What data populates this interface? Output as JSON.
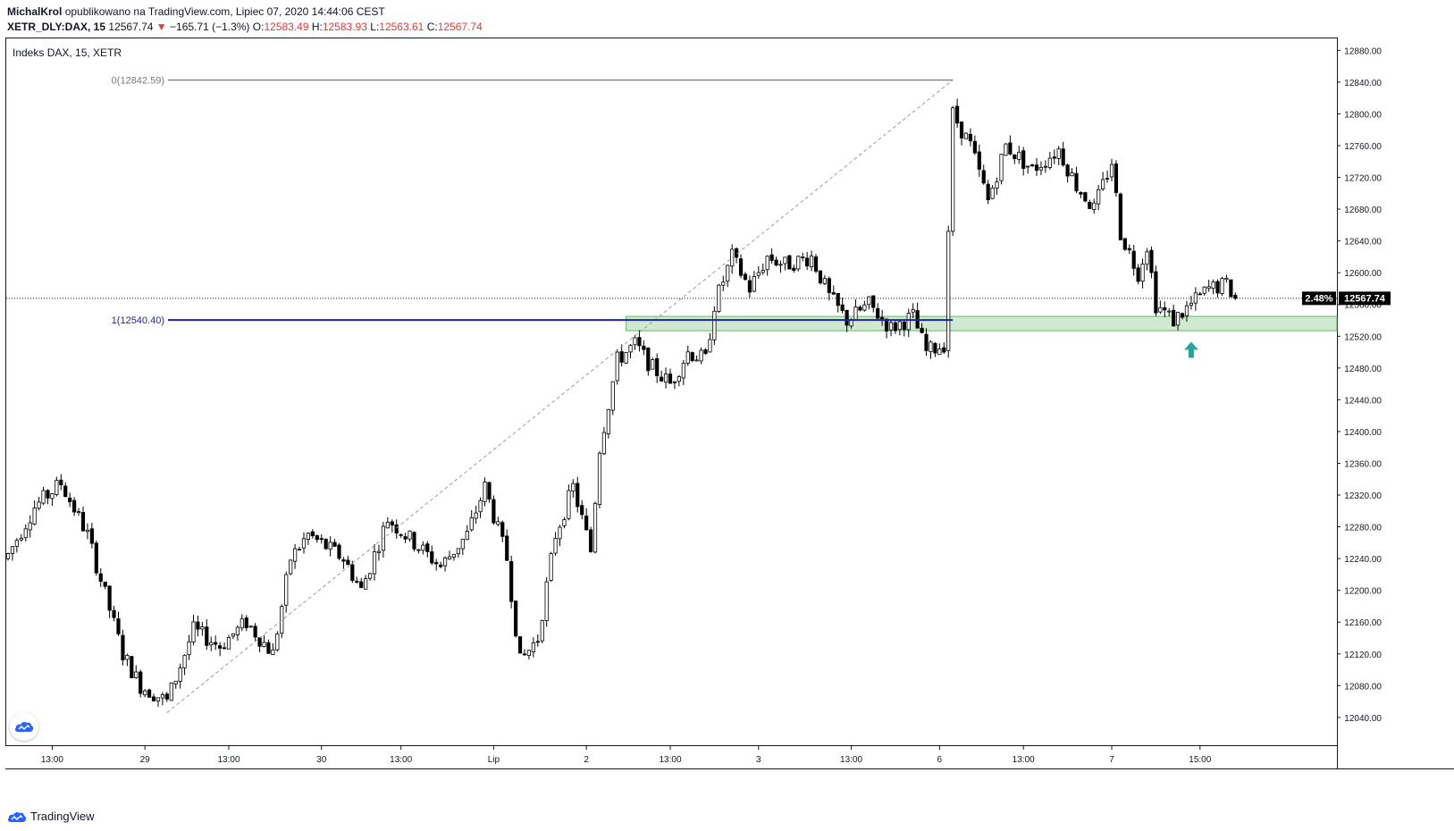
{
  "header": {
    "author": "MichalKrol",
    "published_on": "opublikowano na TradingView.com, Lipiec 07, 2020 14:44:06 CEST",
    "symbol": "XETR_DLY:DAX, 15",
    "last": "12567.74",
    "change_arrow": "▼",
    "change": "−165.71 (−1.3%)",
    "o_label": "O:",
    "o_value": "12583.49",
    "h_label": "H:",
    "h_value": "12583.93",
    "l_label": "L:",
    "l_value": "12563.61",
    "c_label": "C:",
    "c_value": "12567.74"
  },
  "legend": "Indeks DAX, 15, XETR",
  "fib": {
    "level0_label": "0(12842.59)",
    "level1_label": "1(12540.40)",
    "level0": 12842.59,
    "level1": 12540.4
  },
  "price_badge": {
    "pct": "2.48%",
    "price": "12567.74"
  },
  "footer": {
    "brand": "TradingView"
  },
  "colors": {
    "candle_up_fill": "#ffffff",
    "candle_down_fill": "#000000",
    "fib_level0_line": "#787b86",
    "fib_level1_line": "#1e22aa",
    "zone_fill": "#c8e6c9",
    "zone_border": "#4caf50",
    "arrow": "#26a69a",
    "grid": "#ffffff"
  },
  "chart_data": {
    "type": "candlestick",
    "title": "Indeks DAX, 15, XETR",
    "y_axis": {
      "ylim": [
        12005,
        12895
      ],
      "ticks": [
        12040,
        12080,
        12120,
        12160,
        12200,
        12240,
        12280,
        12320,
        12360,
        12400,
        12440,
        12480,
        12520,
        12560,
        12600,
        12640,
        12680,
        12720,
        12760,
        12800,
        12840,
        12880
      ],
      "tick_labels": [
        "12040.00",
        "12080.00",
        "12120.00",
        "12160.00",
        "12200.00",
        "12240.00",
        "12280.00",
        "12320.00",
        "12360.00",
        "12400.00",
        "12440.00",
        "12480.00",
        "12520.00",
        "12560.00",
        "12600.00",
        "12640.00",
        "12680.00",
        "12720.00",
        "12760.00",
        "12800.00",
        "12840.00",
        "12880.00"
      ]
    },
    "x_axis": {
      "bar_count": 290,
      "tick_bars": [
        10,
        31,
        50,
        71,
        89,
        110,
        131,
        150,
        170,
        191,
        211,
        230,
        250,
        270,
        283
      ],
      "tick_labels": [
        "13:00",
        "29",
        "13:00",
        "30",
        "13:00",
        "Lip",
        "2",
        "13:00",
        "3",
        "13:00",
        "6",
        "13:00",
        "7",
        "15:00",
        ""
      ]
    },
    "series": [],
    "anchors": [
      {
        "bar": 0,
        "price": 12245
      },
      {
        "bar": 6,
        "price": 12305
      },
      {
        "bar": 12,
        "price": 12335
      },
      {
        "bar": 18,
        "price": 12270
      },
      {
        "bar": 26,
        "price": 12120
      },
      {
        "bar": 30,
        "price": 12080
      },
      {
        "bar": 36,
        "price": 12060
      },
      {
        "bar": 42,
        "price": 12150
      },
      {
        "bar": 48,
        "price": 12130
      },
      {
        "bar": 54,
        "price": 12160
      },
      {
        "bar": 60,
        "price": 12120
      },
      {
        "bar": 64,
        "price": 12240
      },
      {
        "bar": 68,
        "price": 12270
      },
      {
        "bar": 76,
        "price": 12240
      },
      {
        "bar": 80,
        "price": 12200
      },
      {
        "bar": 86,
        "price": 12290
      },
      {
        "bar": 92,
        "price": 12260
      },
      {
        "bar": 98,
        "price": 12230
      },
      {
        "bar": 104,
        "price": 12270
      },
      {
        "bar": 108,
        "price": 12330
      },
      {
        "bar": 113,
        "price": 12240
      },
      {
        "bar": 116,
        "price": 12110
      },
      {
        "bar": 120,
        "price": 12140
      },
      {
        "bar": 124,
        "price": 12270
      },
      {
        "bar": 128,
        "price": 12330
      },
      {
        "bar": 132,
        "price": 12250
      },
      {
        "bar": 134,
        "price": 12380
      },
      {
        "bar": 138,
        "price": 12490
      },
      {
        "bar": 142,
        "price": 12510
      },
      {
        "bar": 146,
        "price": 12480
      },
      {
        "bar": 150,
        "price": 12460
      },
      {
        "bar": 154,
        "price": 12500
      },
      {
        "bar": 158,
        "price": 12490
      },
      {
        "bar": 160,
        "price": 12560
      },
      {
        "bar": 164,
        "price": 12620
      },
      {
        "bar": 168,
        "price": 12580
      },
      {
        "bar": 172,
        "price": 12620
      },
      {
        "bar": 176,
        "price": 12610
      },
      {
        "bar": 182,
        "price": 12620
      },
      {
        "bar": 186,
        "price": 12570
      },
      {
        "bar": 190,
        "price": 12540
      },
      {
        "bar": 195,
        "price": 12560
      },
      {
        "bar": 200,
        "price": 12530
      },
      {
        "bar": 205,
        "price": 12545
      },
      {
        "bar": 208,
        "price": 12500
      },
      {
        "bar": 212,
        "price": 12510
      },
      {
        "bar": 214,
        "price": 12800
      },
      {
        "bar": 218,
        "price": 12760
      },
      {
        "bar": 222,
        "price": 12690
      },
      {
        "bar": 226,
        "price": 12760
      },
      {
        "bar": 232,
        "price": 12730
      },
      {
        "bar": 238,
        "price": 12755
      },
      {
        "bar": 242,
        "price": 12710
      },
      {
        "bar": 246,
        "price": 12680
      },
      {
        "bar": 250,
        "price": 12740
      },
      {
        "bar": 252,
        "price": 12650
      },
      {
        "bar": 256,
        "price": 12600
      },
      {
        "bar": 258,
        "price": 12635
      },
      {
        "bar": 260,
        "price": 12560
      },
      {
        "bar": 264,
        "price": 12540
      },
      {
        "bar": 268,
        "price": 12560
      },
      {
        "bar": 272,
        "price": 12580
      },
      {
        "bar": 276,
        "price": 12585
      },
      {
        "bar": 278,
        "price": 12567.74
      }
    ],
    "drawings": {
      "fib_retracement": {
        "level_0": 12842.59,
        "level_1": 12540.4,
        "from_bar": 36,
        "to_bar": 214
      },
      "support_zone": {
        "from": 12527,
        "to": 12545,
        "from_bar": 140
      },
      "arrow_up_bar": 268,
      "current_price": 12567.74
    }
  }
}
